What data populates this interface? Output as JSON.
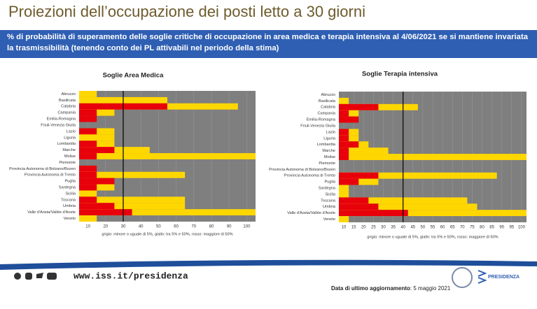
{
  "header": {
    "title": "Proiezioni dell’occupazione dei posti letto a 30 giorni"
  },
  "banner": {
    "text": "% di probabilità di superamento delle soglie critiche di occupazione in area medica e terapia intensiva al 4/06/2021 se si mantiene invariata la trasmissibilità (tenendo conto dei PL attivabili nel periodo della stima)"
  },
  "chart_data": [
    {
      "type": "bar",
      "orientation": "horizontal",
      "title": "Soglie Area Medica",
      "note": "grigio: minore o uguale di 5%, giallo: tra 5% e 50%, rosso: maggiore di 50%",
      "background": "#7f7f7f",
      "threshold": 30,
      "categories": [
        "Abruzzo",
        "Basilicata",
        "Calabria",
        "Campania",
        "Emilia-Romagna",
        "Friuli-Venezia Giulia",
        "Lazio",
        "Liguria",
        "Lombardia",
        "Marche",
        "Molise",
        "Piemonte",
        "Provincia Autonoma di Bolzano/Bozen",
        "Provincia Autonoma di Trento",
        "Puglia",
        "Sardegna",
        "Sicilia",
        "Toscana",
        "Umbria",
        "Valle d'Aosta/Vallée d'Aoste",
        "Veneto"
      ],
      "series": [
        {
          "color": "#ffd700",
          "values": [
            15,
            55,
            95,
            25,
            null,
            null,
            25,
            25,
            25,
            45,
            105,
            null,
            null,
            65,
            null,
            25,
            15,
            65,
            65,
            105,
            15
          ]
        },
        {
          "color": "#e8000b",
          "values": [
            null,
            null,
            55,
            15,
            15,
            null,
            15,
            null,
            15,
            25,
            15,
            null,
            15,
            15,
            25,
            15,
            null,
            15,
            25,
            35,
            null
          ]
        }
      ],
      "xlim": [
        5,
        105
      ],
      "xticks": [
        10,
        20,
        30,
        40,
        50,
        60,
        70,
        80,
        90,
        100
      ]
    },
    {
      "type": "bar",
      "orientation": "horizontal",
      "title": "Soglie Terapia intensiva",
      "note": "grigio: minore o uguale di 5%, giallo: tra 5% e 50%, rosso: maggiore di 50%",
      "background": "#7f7f7f",
      "threshold": 40,
      "categories": [
        "Abruzzo",
        "Basilicata",
        "Calabria",
        "Campania",
        "Emilia-Romagna",
        "Friuli-Venezia Giulia",
        "Lazio",
        "Liguria",
        "Lombardia",
        "Marche",
        "Molise",
        "Piemonte",
        "Provincia Autonoma di Bolzano/Bozen",
        "Provincia Autonoma di Trento",
        "Puglia",
        "Sardegna",
        "Sicilia",
        "Toscana",
        "Umbria",
        "Valle d'Aosta/Vallée d'Aoste",
        "Veneto"
      ],
      "series": [
        {
          "color": "#ffd700",
          "values": [
            null,
            12.5,
            47.5,
            17.5,
            null,
            null,
            17.5,
            17.5,
            22.5,
            32.5,
            102.5,
            null,
            null,
            87.5,
            27.5,
            12.5,
            12.5,
            72.5,
            77.5,
            102.5,
            12.5
          ]
        },
        {
          "color": "#e8000b",
          "values": [
            null,
            null,
            27.5,
            12.5,
            17.5,
            null,
            12.5,
            12.5,
            17.5,
            12.5,
            12.5,
            null,
            null,
            27.5,
            17.5,
            null,
            null,
            22.5,
            27.5,
            42.5,
            null
          ]
        }
      ],
      "xlim": [
        7.5,
        102.5
      ],
      "xticks": [
        10,
        15,
        20,
        25,
        30,
        35,
        40,
        45,
        50,
        55,
        60,
        65,
        70,
        75,
        80,
        85,
        90,
        95,
        100
      ]
    }
  ],
  "footer": {
    "url": "www.iss.it/presidenza",
    "update_label": "Data di ultimo aggiornamento",
    "update_date": "5 maggio 2021",
    "logo_text": "PRESIDENZA"
  }
}
